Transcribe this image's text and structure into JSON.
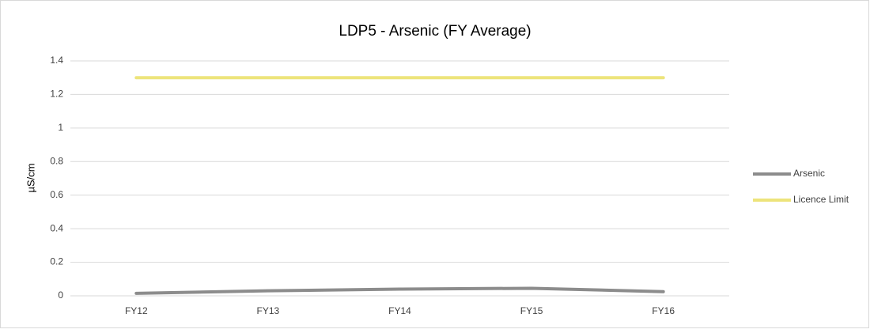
{
  "chart_data": {
    "type": "line",
    "title": "LDP5 - Arsenic (FY Average)",
    "y_label": "µS/cm",
    "categories": [
      "FY12",
      "FY13",
      "FY14",
      "FY15",
      "FY16"
    ],
    "series": [
      {
        "name": "Arsenic",
        "color": "#8c8c8c",
        "values": [
          0.015,
          0.03,
          0.04,
          0.045,
          0.025
        ]
      },
      {
        "name": "Licence Limit",
        "color": "#ede47b",
        "values": [
          1.3,
          1.3,
          1.3,
          1.3,
          1.3
        ]
      }
    ],
    "ylim": [
      0,
      1.4
    ],
    "yticks": [
      0,
      0.2,
      0.4,
      0.6,
      0.8,
      1,
      1.2,
      1.4
    ],
    "grid": true,
    "legend": "right"
  }
}
